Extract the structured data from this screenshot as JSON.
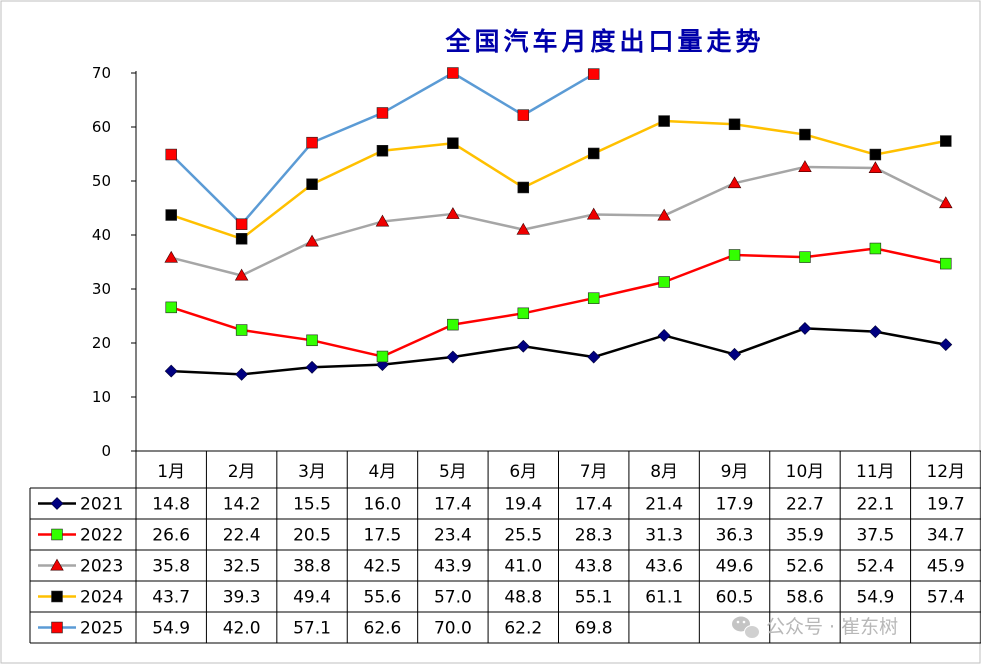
{
  "chart_data": {
    "type": "line",
    "title": "全国汽车月度出口量走势",
    "categories": [
      "1月",
      "2月",
      "3月",
      "4月",
      "5月",
      "6月",
      "7月",
      "8月",
      "9月",
      "10月",
      "11月",
      "12月"
    ],
    "ylim": [
      0,
      70
    ],
    "y_ticks": [
      "0",
      "10",
      "20",
      "30",
      "40",
      "50",
      "60",
      "70"
    ],
    "grid": false,
    "legend": "table-left",
    "series": [
      {
        "name": "2021",
        "color": "#000000",
        "marker": "diamond",
        "marker_color": "#000080",
        "values": [
          14.8,
          14.2,
          15.5,
          16.0,
          17.4,
          19.4,
          17.4,
          21.4,
          17.9,
          22.7,
          22.1,
          19.7
        ],
        "labels": [
          "14.8",
          "14.2",
          "15.5",
          "16.0",
          "17.4",
          "19.4",
          "17.4",
          "21.4",
          "17.9",
          "22.7",
          "22.1",
          "19.7"
        ]
      },
      {
        "name": "2022",
        "color": "#ff0000",
        "marker": "square",
        "marker_color": "#33ff00",
        "values": [
          26.6,
          22.4,
          20.5,
          17.5,
          23.4,
          25.5,
          28.3,
          31.3,
          36.3,
          35.9,
          37.5,
          34.7
        ],
        "labels": [
          "26.6",
          "22.4",
          "20.5",
          "17.5",
          "23.4",
          "25.5",
          "28.3",
          "31.3",
          "36.3",
          "35.9",
          "37.5",
          "34.7"
        ]
      },
      {
        "name": "2023",
        "color": "#a6a6a6",
        "marker": "triangle",
        "marker_color": "#ee0000",
        "values": [
          35.8,
          32.5,
          38.8,
          42.5,
          43.9,
          41.0,
          43.8,
          43.6,
          49.6,
          52.6,
          52.4,
          45.9
        ],
        "labels": [
          "35.8",
          "32.5",
          "38.8",
          "42.5",
          "43.9",
          "41.0",
          "43.8",
          "43.6",
          "49.6",
          "52.6",
          "52.4",
          "45.9"
        ]
      },
      {
        "name": "2024",
        "color": "#ffc000",
        "marker": "square",
        "marker_color": "#000000",
        "values": [
          43.7,
          39.3,
          49.4,
          55.6,
          57.0,
          48.8,
          55.1,
          61.1,
          60.5,
          58.6,
          54.9,
          57.4
        ],
        "labels": [
          "43.7",
          "39.3",
          "49.4",
          "55.6",
          "57.0",
          "48.8",
          "55.1",
          "61.1",
          "60.5",
          "58.6",
          "54.9",
          "57.4"
        ]
      },
      {
        "name": "2025",
        "color": "#5b9bd5",
        "marker": "square",
        "marker_color": "#ff0000",
        "values": [
          54.9,
          42.0,
          57.1,
          62.6,
          70.0,
          62.2,
          69.8,
          null,
          null,
          null,
          null,
          null
        ],
        "labels": [
          "54.9",
          "42.0",
          "57.1",
          "62.6",
          "70.0",
          "62.2",
          "69.8",
          "",
          "",
          "",
          "",
          ""
        ]
      }
    ]
  },
  "watermark": "公众号 · 崔东树",
  "watermark_icon": "wechat-icon"
}
